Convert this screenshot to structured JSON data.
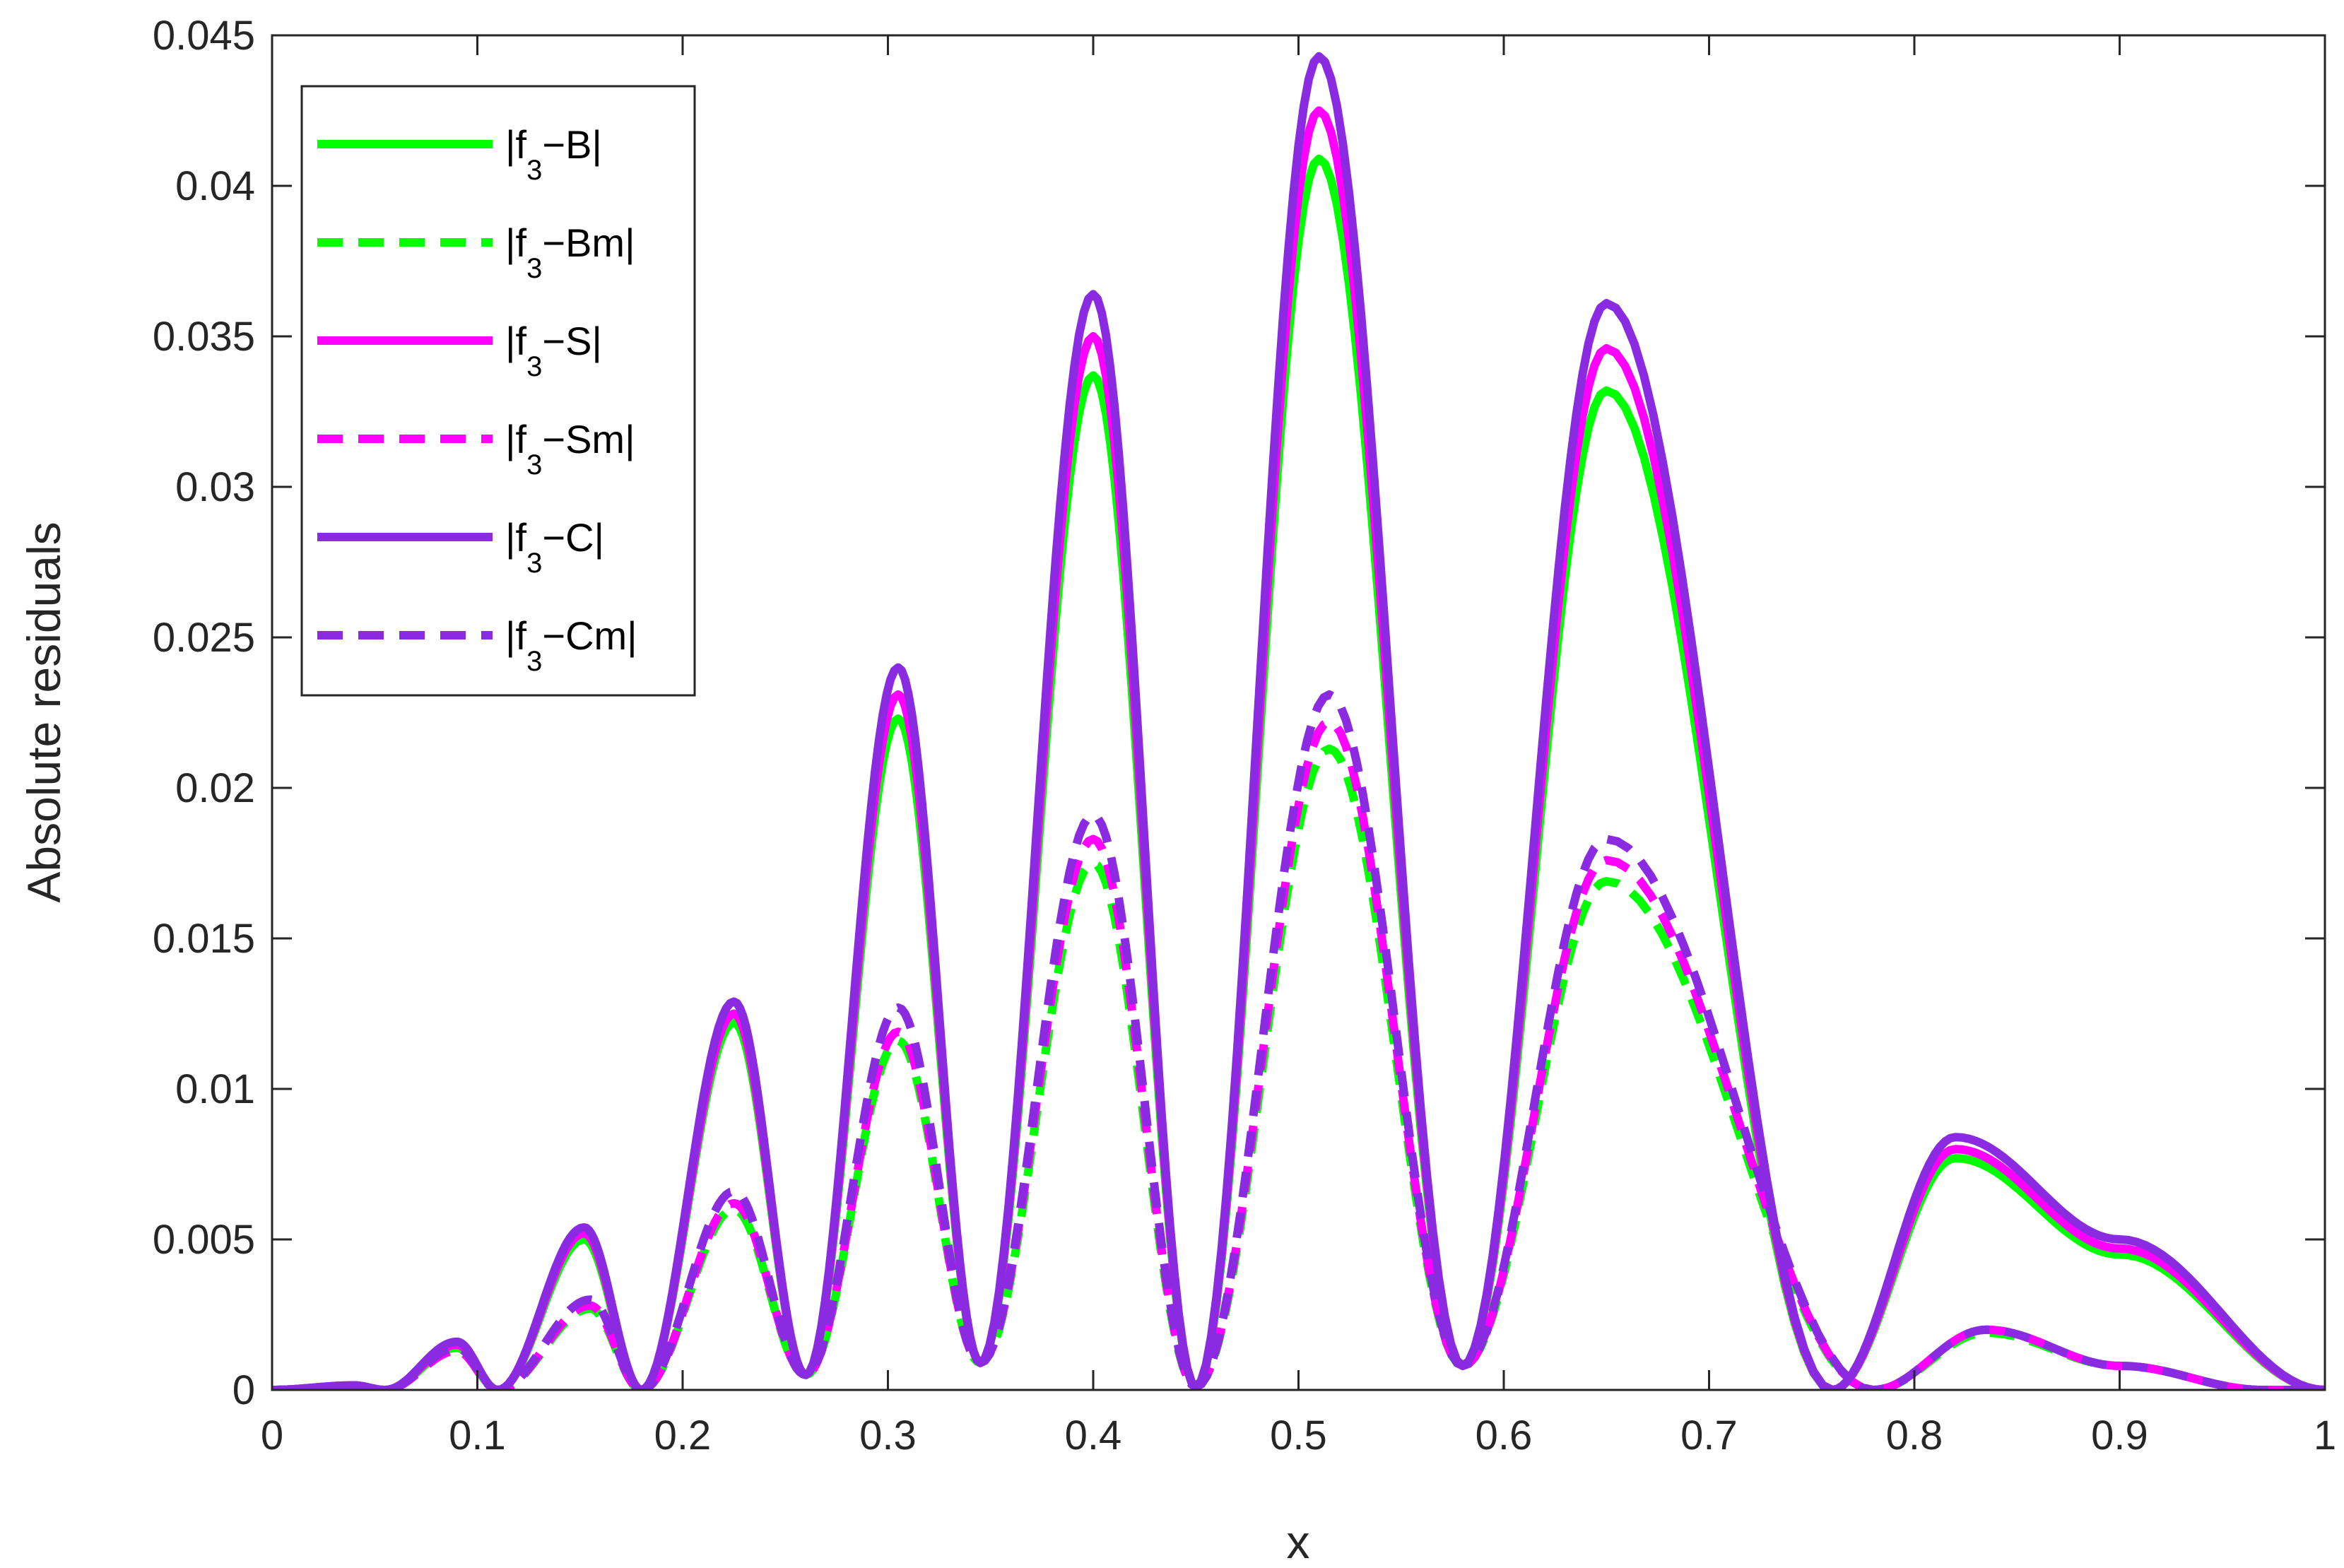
{
  "chart_data": {
    "type": "line",
    "title": "",
    "xlabel": "x",
    "ylabel": "Absolute residuals",
    "xlim": [
      0,
      1
    ],
    "ylim": [
      0,
      0.045
    ],
    "xticks": [
      0,
      0.1,
      0.2,
      0.3,
      0.4,
      0.5,
      0.6,
      0.7,
      0.8,
      0.9,
      1
    ],
    "xtick_labels": [
      "0",
      "0.1",
      "0.2",
      "0.3",
      "0.4",
      "0.5",
      "0.6",
      "0.7",
      "0.8",
      "0.9",
      "1"
    ],
    "yticks": [
      0,
      0.005,
      0.01,
      0.015,
      0.02,
      0.025,
      0.03,
      0.035,
      0.04,
      0.045
    ],
    "ytick_labels": [
      "0",
      "0.005",
      "0.01",
      "0.015",
      "0.02",
      "0.025",
      "0.03",
      "0.035",
      "0.04",
      "0.045"
    ],
    "grid": false,
    "box": true,
    "legend_position": "top-left",
    "series": [
      {
        "name": "|f3−B|",
        "legend_main": "|f",
        "legend_sub": "3",
        "legend_tail": "−B|",
        "color": "#00ff00",
        "dash": "solid",
        "x": [
          0,
          0.04,
          0.055,
          0.09,
          0.11,
          0.152,
          0.18,
          0.225,
          0.26,
          0.305,
          0.345,
          0.4,
          0.45,
          0.51,
          0.58,
          0.65,
          0.76,
          0.82,
          0.9,
          1
        ],
        "y": [
          0,
          0.00015,
          0,
          0.0014,
          0,
          0.005,
          0,
          0.0122,
          0.0005,
          0.0223,
          0.0009,
          0.0337,
          0.0001,
          0.0409,
          0.0008,
          0.0332,
          0,
          0.0077,
          0.0045,
          0
        ]
      },
      {
        "name": "|f3−Bm|",
        "legend_main": "|f",
        "legend_sub": "3",
        "legend_tail": "−Bm|",
        "color": "#00ff00",
        "dash": "dashed",
        "x": [
          0,
          0.04,
          0.055,
          0.09,
          0.11,
          0.155,
          0.18,
          0.225,
          0.26,
          0.305,
          0.345,
          0.4,
          0.45,
          0.515,
          0.58,
          0.65,
          0.78,
          0.835,
          0.9,
          0.97,
          1
        ],
        "y": [
          0,
          0.0001,
          0,
          0.0013,
          0,
          0.0027,
          0,
          0.006,
          0.0005,
          0.0116,
          0.0009,
          0.0175,
          0.0001,
          0.0213,
          0.0008,
          0.0169,
          0,
          0.0019,
          0.0008,
          0,
          0
        ]
      },
      {
        "name": "|f3−S|",
        "legend_main": "|f",
        "legend_sub": "3",
        "legend_tail": "−S|",
        "color": "#ff00ff",
        "dash": "solid",
        "x": [
          0,
          0.04,
          0.055,
          0.09,
          0.11,
          0.152,
          0.18,
          0.225,
          0.26,
          0.305,
          0.345,
          0.4,
          0.45,
          0.51,
          0.58,
          0.65,
          0.76,
          0.82,
          0.9,
          1
        ],
        "y": [
          0,
          0.00015,
          0,
          0.0015,
          0,
          0.0052,
          0,
          0.0125,
          0.0005,
          0.0231,
          0.0009,
          0.035,
          0.0001,
          0.0425,
          0.0008,
          0.0346,
          0,
          0.008,
          0.0047,
          0
        ]
      },
      {
        "name": "|f3−Sm|",
        "legend_main": "|f",
        "legend_sub": "3",
        "legend_tail": "−Sm|",
        "color": "#ff00ff",
        "dash": "dashed",
        "x": [
          0,
          0.04,
          0.055,
          0.09,
          0.11,
          0.155,
          0.18,
          0.225,
          0.26,
          0.305,
          0.345,
          0.4,
          0.45,
          0.515,
          0.58,
          0.65,
          0.78,
          0.835,
          0.9,
          0.97,
          1
        ],
        "y": [
          0,
          0.0001,
          0,
          0.0013,
          0,
          0.0028,
          0,
          0.0062,
          0.0005,
          0.0119,
          0.0009,
          0.0183,
          0.0001,
          0.0222,
          0.0008,
          0.0176,
          0,
          0.002,
          0.0008,
          0,
          0
        ]
      },
      {
        "name": "|f3−C|",
        "legend_main": "|f",
        "legend_sub": "3",
        "legend_tail": "−C|",
        "color": "#8a2be2",
        "dash": "solid",
        "x": [
          0,
          0.04,
          0.055,
          0.09,
          0.11,
          0.152,
          0.18,
          0.225,
          0.26,
          0.305,
          0.345,
          0.4,
          0.45,
          0.51,
          0.58,
          0.65,
          0.76,
          0.82,
          0.9,
          1
        ],
        "y": [
          0,
          0.00015,
          0,
          0.0016,
          0,
          0.0054,
          0,
          0.0129,
          0.0005,
          0.024,
          0.0009,
          0.0364,
          0.0001,
          0.0443,
          0.0008,
          0.0361,
          0,
          0.0084,
          0.005,
          0
        ]
      },
      {
        "name": "|f3−Cm|",
        "legend_main": "|f",
        "legend_sub": "3",
        "legend_tail": "−Cm|",
        "color": "#8a2be2",
        "dash": "dashed",
        "x": [
          0,
          0.04,
          0.055,
          0.09,
          0.11,
          0.155,
          0.18,
          0.225,
          0.26,
          0.305,
          0.345,
          0.4,
          0.45,
          0.515,
          0.58,
          0.65,
          0.78,
          0.835,
          0.9,
          0.97,
          1
        ],
        "y": [
          0,
          0.0001,
          0,
          0.0014,
          0,
          0.003,
          0,
          0.0066,
          0.0005,
          0.0127,
          0.0009,
          0.0191,
          0.0001,
          0.0231,
          0.0008,
          0.0183,
          0,
          0.002,
          0.0008,
          0,
          0
        ]
      }
    ]
  }
}
